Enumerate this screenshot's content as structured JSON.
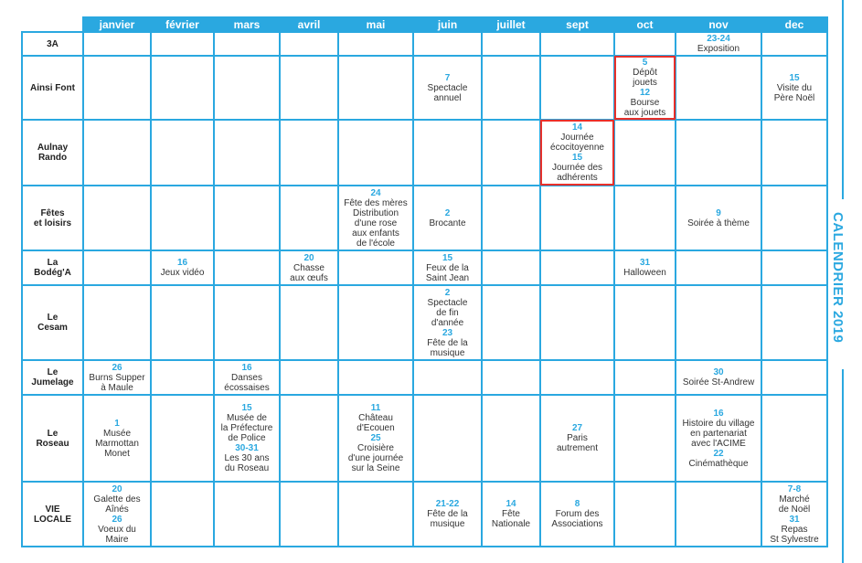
{
  "side_title": "CALENDRIER 2019",
  "colors": {
    "accent": "#2aa8e0",
    "highlight": "#e8302a"
  },
  "months": [
    "janvier",
    "février",
    "mars",
    "avril",
    "mai",
    "juin",
    "juillet",
    "sept",
    "oct",
    "nov",
    "dec"
  ],
  "rows": [
    {
      "label": "3A",
      "cells": {
        "nov": [
          {
            "date": "23-24",
            "text": "Exposition"
          }
        ]
      }
    },
    {
      "label": "Ainsi Font",
      "cells": {
        "juin": [
          {
            "date": "7",
            "text": "Spectacle\nannuel"
          }
        ],
        "oct": [
          {
            "date": "5",
            "text": "Dépôt\njouets"
          },
          {
            "date": "12",
            "text": "Bourse\naux jouets"
          }
        ],
        "dec": [
          {
            "date": "15",
            "text": "Visite du\nPère Noël"
          }
        ]
      },
      "highlight": [
        "oct"
      ]
    },
    {
      "label": "Aulnay\nRando",
      "cells": {
        "sept": [
          {
            "date": "14",
            "text": "Journée\nécocitoyenne"
          },
          {
            "date": "15",
            "text": "Journée des\nadhérents"
          }
        ]
      },
      "highlight": [
        "sept"
      ]
    },
    {
      "label": "Fêtes\net loisirs",
      "cells": {
        "mai": [
          {
            "date": "24",
            "text": "Fête des mères\nDistribution\nd'une rose\naux enfants\nde l'école"
          }
        ],
        "juin": [
          {
            "date": "2",
            "text": "Brocante"
          }
        ],
        "nov": [
          {
            "date": "9",
            "text": "Soirée à thème"
          }
        ]
      }
    },
    {
      "label": "La\nBodég'A",
      "cells": {
        "février": [
          {
            "date": "16",
            "text": "Jeux vidéo"
          }
        ],
        "avril": [
          {
            "date": "20",
            "text": "Chasse\naux œufs"
          }
        ],
        "juin": [
          {
            "date": "15",
            "text": "Feux de la\nSaint Jean"
          }
        ],
        "oct": [
          {
            "date": "31",
            "text": "Halloween"
          }
        ]
      }
    },
    {
      "label": "Le\nCesam",
      "cells": {
        "juin": [
          {
            "date": "2",
            "text": "Spectacle\nde fin\nd'année"
          },
          {
            "date": "23",
            "text": "Fête de la\nmusique"
          }
        ]
      }
    },
    {
      "label": "Le\nJumelage",
      "cells": {
        "janvier": [
          {
            "date": "26",
            "text": "Burns Supper\nà Maule"
          }
        ],
        "mars": [
          {
            "date": "16",
            "text": "Danses\nécossaises"
          }
        ],
        "nov": [
          {
            "date": "30",
            "text": "Soirée St-Andrew"
          }
        ]
      }
    },
    {
      "label": "Le\nRoseau",
      "cells": {
        "janvier": [
          {
            "date": "1",
            "text": "Musée\nMarmottan\nMonet"
          }
        ],
        "mars": [
          {
            "date": "15",
            "text": "Musée de\nla Préfecture\nde Police"
          },
          {
            "date": "30-31",
            "text": "Les 30 ans\ndu Roseau"
          }
        ],
        "mai": [
          {
            "date": "11",
            "text": "Château\nd'Ecouen"
          },
          {
            "date": "25",
            "text": "Croisière\nd'une journée\nsur la Seine"
          }
        ],
        "sept": [
          {
            "date": "27",
            "text": "Paris\nautrement"
          }
        ],
        "nov": [
          {
            "date": "16",
            "text": "Histoire du village\nen partenariat\navec l'ACIME"
          },
          {
            "date": "22",
            "text": "Cinémathèque"
          }
        ]
      }
    },
    {
      "label": "VIE\nLOCALE",
      "cells": {
        "janvier": [
          {
            "date": "20",
            "text": "Galette des\nAînés"
          },
          {
            "date": "26",
            "text": "Voeux du\nMaire"
          }
        ],
        "juin": [
          {
            "date": "21-22",
            "text": "Fête de la\nmusique"
          }
        ],
        "juillet": [
          {
            "date": "14",
            "text": "Fête\nNationale"
          }
        ],
        "sept": [
          {
            "date": "8",
            "text": "Forum des\nAssociations"
          }
        ],
        "dec": [
          {
            "date": "7-8",
            "text": "Marché\nde Noël"
          },
          {
            "date": "31",
            "text": "Repas\nSt Sylvestre"
          }
        ]
      }
    }
  ]
}
